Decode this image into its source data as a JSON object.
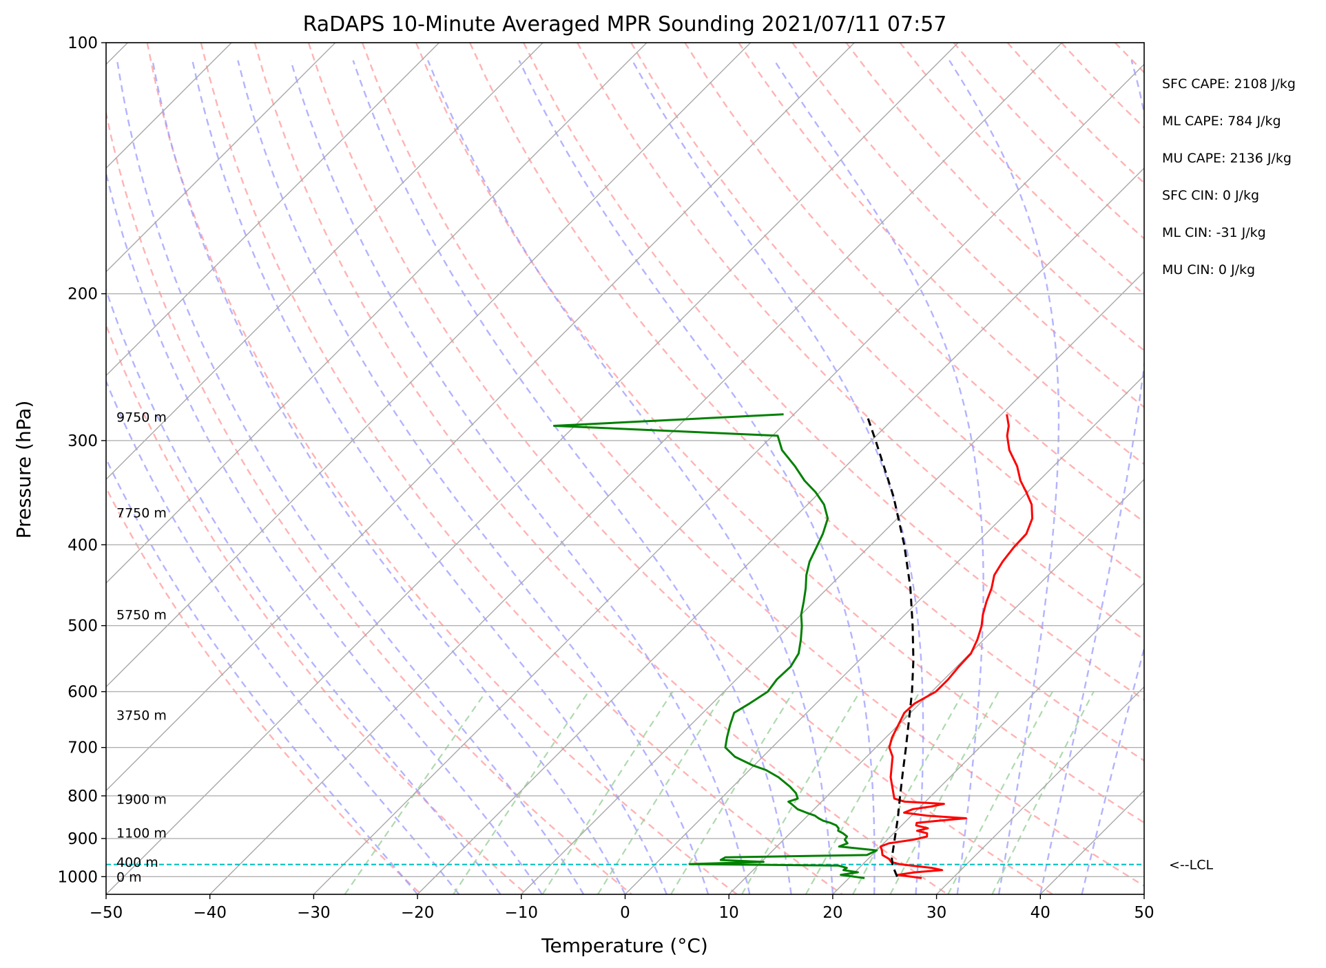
{
  "chart_data": {
    "type": "line",
    "title": "RaDAPS 10-Minute Averaged MPR Sounding 2021/07/11 07:57",
    "xlabel": "Temperature (°C)",
    "ylabel": "Pressure (hPa)",
    "xlim": [
      -50,
      50
    ],
    "ylim": [
      1050,
      100
    ],
    "y_scale": "log",
    "x_ticks": [
      -50,
      -40,
      -30,
      -20,
      -10,
      0,
      10,
      20,
      30,
      40,
      50
    ],
    "x_tick_labels": [
      "−50",
      "−40",
      "−30",
      "−20",
      "−10",
      "0",
      "10",
      "20",
      "30",
      "40",
      "50"
    ],
    "y_ticks": [
      100,
      200,
      300,
      400,
      500,
      600,
      700,
      800,
      900,
      1000
    ],
    "y_tick_labels": [
      "100",
      "200",
      "300",
      "400",
      "500",
      "600",
      "700",
      "800",
      "900",
      "1000"
    ],
    "grid": true,
    "skew_note": "isotherms skewed 45 degrees",
    "background_lines": {
      "isotherm_color": "#a8a8a8",
      "dry_adiabat_color": "#ff9a9a",
      "moist_adiabat_color": "#9a9aff",
      "mixing_ratio_color": "#9ad09a"
    },
    "height_labels": [
      {
        "text": "9750 m",
        "p": 281
      },
      {
        "text": "7750 m",
        "p": 366
      },
      {
        "text": "5750 m",
        "p": 485
      },
      {
        "text": "3750 m",
        "p": 640
      },
      {
        "text": "1900 m",
        "p": 807
      },
      {
        "text": "1100 m",
        "p": 886
      },
      {
        "text": "400 m",
        "p": 960
      },
      {
        "text": "0 m",
        "p": 1000
      }
    ],
    "lcl": {
      "label": "<--LCL",
      "p": 967,
      "color": "#00bfbf"
    },
    "indices": [
      "SFC CAPE: 2108 J/kg",
      "ML CAPE: 784 J/kg",
      "MU CAPE: 2136 J/kg",
      "SFC CIN: 0 J/kg",
      "ML CIN: -31 J/kg",
      "MU CIN: 0 J/kg"
    ],
    "series": [
      {
        "name": "",
        "color": "#ff0000",
        "points": [
          [
            1004,
            27
          ],
          [
            995,
            24.4
          ],
          [
            988,
            25.8
          ],
          [
            982,
            28.2
          ],
          [
            976,
            27
          ],
          [
            970,
            24.8
          ],
          [
            966,
            23.5
          ],
          [
            960,
            22.5
          ],
          [
            952,
            22
          ],
          [
            942,
            21
          ],
          [
            930,
            20.5
          ],
          [
            920,
            20
          ],
          [
            912,
            20.5
          ],
          [
            903,
            22.5
          ],
          [
            895,
            23.5
          ],
          [
            887,
            23.2
          ],
          [
            881,
            22
          ],
          [
            875,
            22.8
          ],
          [
            868,
            21.4
          ],
          [
            862,
            21.2
          ],
          [
            857,
            23
          ],
          [
            851,
            25.5
          ],
          [
            845,
            21.5
          ],
          [
            838,
            19
          ],
          [
            830,
            19.5
          ],
          [
            824,
            21
          ],
          [
            818,
            22
          ],
          [
            813,
            18
          ],
          [
            806,
            16.7
          ],
          [
            760,
            14.3
          ],
          [
            718,
            12.5
          ],
          [
            700,
            11.3
          ],
          [
            681,
            10.6
          ],
          [
            658,
            10
          ],
          [
            636,
            9.4
          ],
          [
            620,
            9.5
          ],
          [
            600,
            10.4
          ],
          [
            580,
            10.4
          ],
          [
            560,
            10.2
          ],
          [
            540,
            10.1
          ],
          [
            520,
            9.4
          ],
          [
            501,
            8.5
          ],
          [
            485,
            7.5
          ],
          [
            468,
            6.6
          ],
          [
            451,
            5.8
          ],
          [
            435,
            4.8
          ],
          [
            419,
            4.3
          ],
          [
            403,
            4
          ],
          [
            388,
            3.9
          ],
          [
            372,
            3
          ],
          [
            358,
            1.6
          ],
          [
            346,
            -0.1
          ],
          [
            335,
            -1.8
          ],
          [
            322,
            -3.5
          ],
          [
            308,
            -5.8
          ],
          [
            296,
            -7.4
          ],
          [
            288,
            -8.2
          ],
          [
            279,
            -9.5
          ]
        ]
      },
      {
        "name": "",
        "color": "#008000",
        "points": [
          [
            1004,
            21.5
          ],
          [
            995,
            18.9
          ],
          [
            988,
            20.3
          ],
          [
            982,
            18.7
          ],
          [
            976,
            18.8
          ],
          [
            970,
            17.8
          ],
          [
            966,
            3.3
          ],
          [
            960,
            10.2
          ],
          [
            955,
            5.9
          ],
          [
            948,
            6.1
          ],
          [
            942,
            19.5
          ],
          [
            930,
            20
          ],
          [
            920,
            16
          ],
          [
            912,
            16.5
          ],
          [
            903,
            15.9
          ],
          [
            895,
            15.8
          ],
          [
            887,
            15.1
          ],
          [
            881,
            14.4
          ],
          [
            875,
            14.2
          ],
          [
            868,
            13.7
          ],
          [
            862,
            12.9
          ],
          [
            857,
            12
          ],
          [
            851,
            11.3
          ],
          [
            845,
            10.7
          ],
          [
            838,
            9.6
          ],
          [
            830,
            8.4
          ],
          [
            818,
            7.3
          ],
          [
            813,
            6.8
          ],
          [
            806,
            7.4
          ],
          [
            794,
            6.7
          ],
          [
            780,
            5.5
          ],
          [
            760,
            3.5
          ],
          [
            745,
            1.6
          ],
          [
            735,
            -0.2
          ],
          [
            718,
            -2.7
          ],
          [
            700,
            -4.5
          ],
          [
            681,
            -5.3
          ],
          [
            658,
            -6.2
          ],
          [
            636,
            -7
          ],
          [
            620,
            -6.4
          ],
          [
            600,
            -5.8
          ],
          [
            580,
            -6.1
          ],
          [
            560,
            -6
          ],
          [
            540,
            -6.5
          ],
          [
            520,
            -7.6
          ],
          [
            501,
            -8.8
          ],
          [
            485,
            -10
          ],
          [
            468,
            -11
          ],
          [
            451,
            -12.1
          ],
          [
            435,
            -13.3
          ],
          [
            419,
            -14.3
          ],
          [
            403,
            -15
          ],
          [
            388,
            -15.7
          ],
          [
            372,
            -16.7
          ],
          [
            358,
            -18.4
          ],
          [
            346,
            -20.4
          ],
          [
            335,
            -22.6
          ],
          [
            322,
            -24.9
          ],
          [
            308,
            -27.7
          ],
          [
            296,
            -29.5
          ],
          [
            288,
            -52
          ],
          [
            279,
            -31
          ]
        ]
      },
      {
        "name": "",
        "color": "#000000",
        "style": "dashed",
        "points": [
          [
            1000,
            24.5
          ],
          [
            970,
            23
          ],
          [
            950,
            22.2
          ],
          [
            900,
            20.6
          ],
          [
            850,
            18.9
          ],
          [
            800,
            17
          ],
          [
            750,
            15
          ],
          [
            700,
            12.9
          ],
          [
            650,
            10.6
          ],
          [
            600,
            8.1
          ],
          [
            550,
            5.2
          ],
          [
            500,
            1.8
          ],
          [
            450,
            -2.1
          ],
          [
            400,
            -6.8
          ],
          [
            350,
            -12.5
          ],
          [
            300,
            -19.6
          ],
          [
            279,
            -23
          ]
        ]
      }
    ]
  }
}
